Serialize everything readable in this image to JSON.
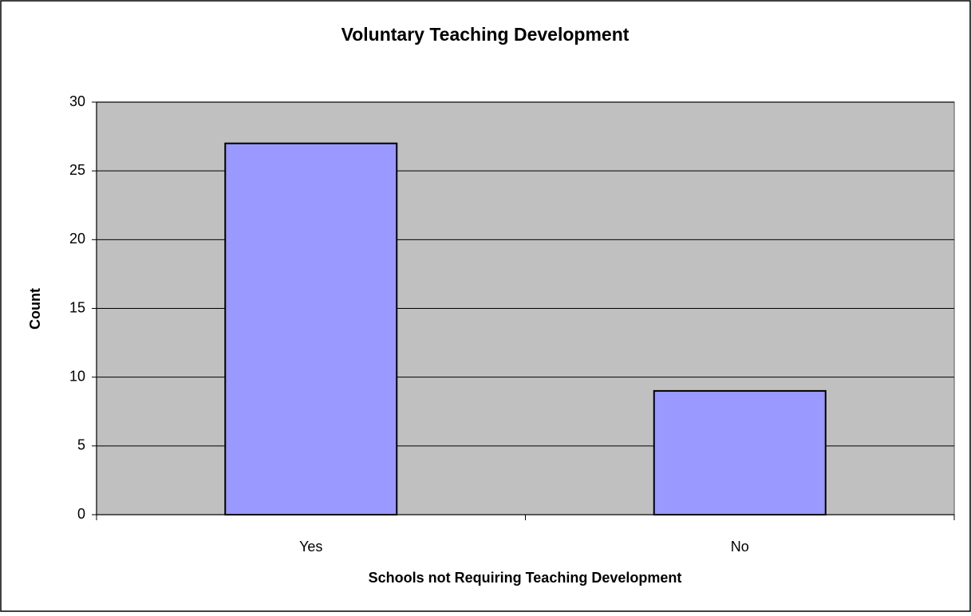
{
  "chart_data": {
    "type": "bar",
    "title": "Voluntary Teaching Development",
    "x_label": "Schools not Requiring Teaching Development",
    "y_label": "Count",
    "categories": [
      "Yes",
      "No"
    ],
    "values": [
      27,
      9
    ],
    "color": "#9999ff",
    "ylim": [
      0,
      30
    ],
    "yticks": [
      0,
      5,
      10,
      15,
      20,
      25,
      30
    ],
    "grid": true,
    "plot_background": "#c0c0c0"
  }
}
